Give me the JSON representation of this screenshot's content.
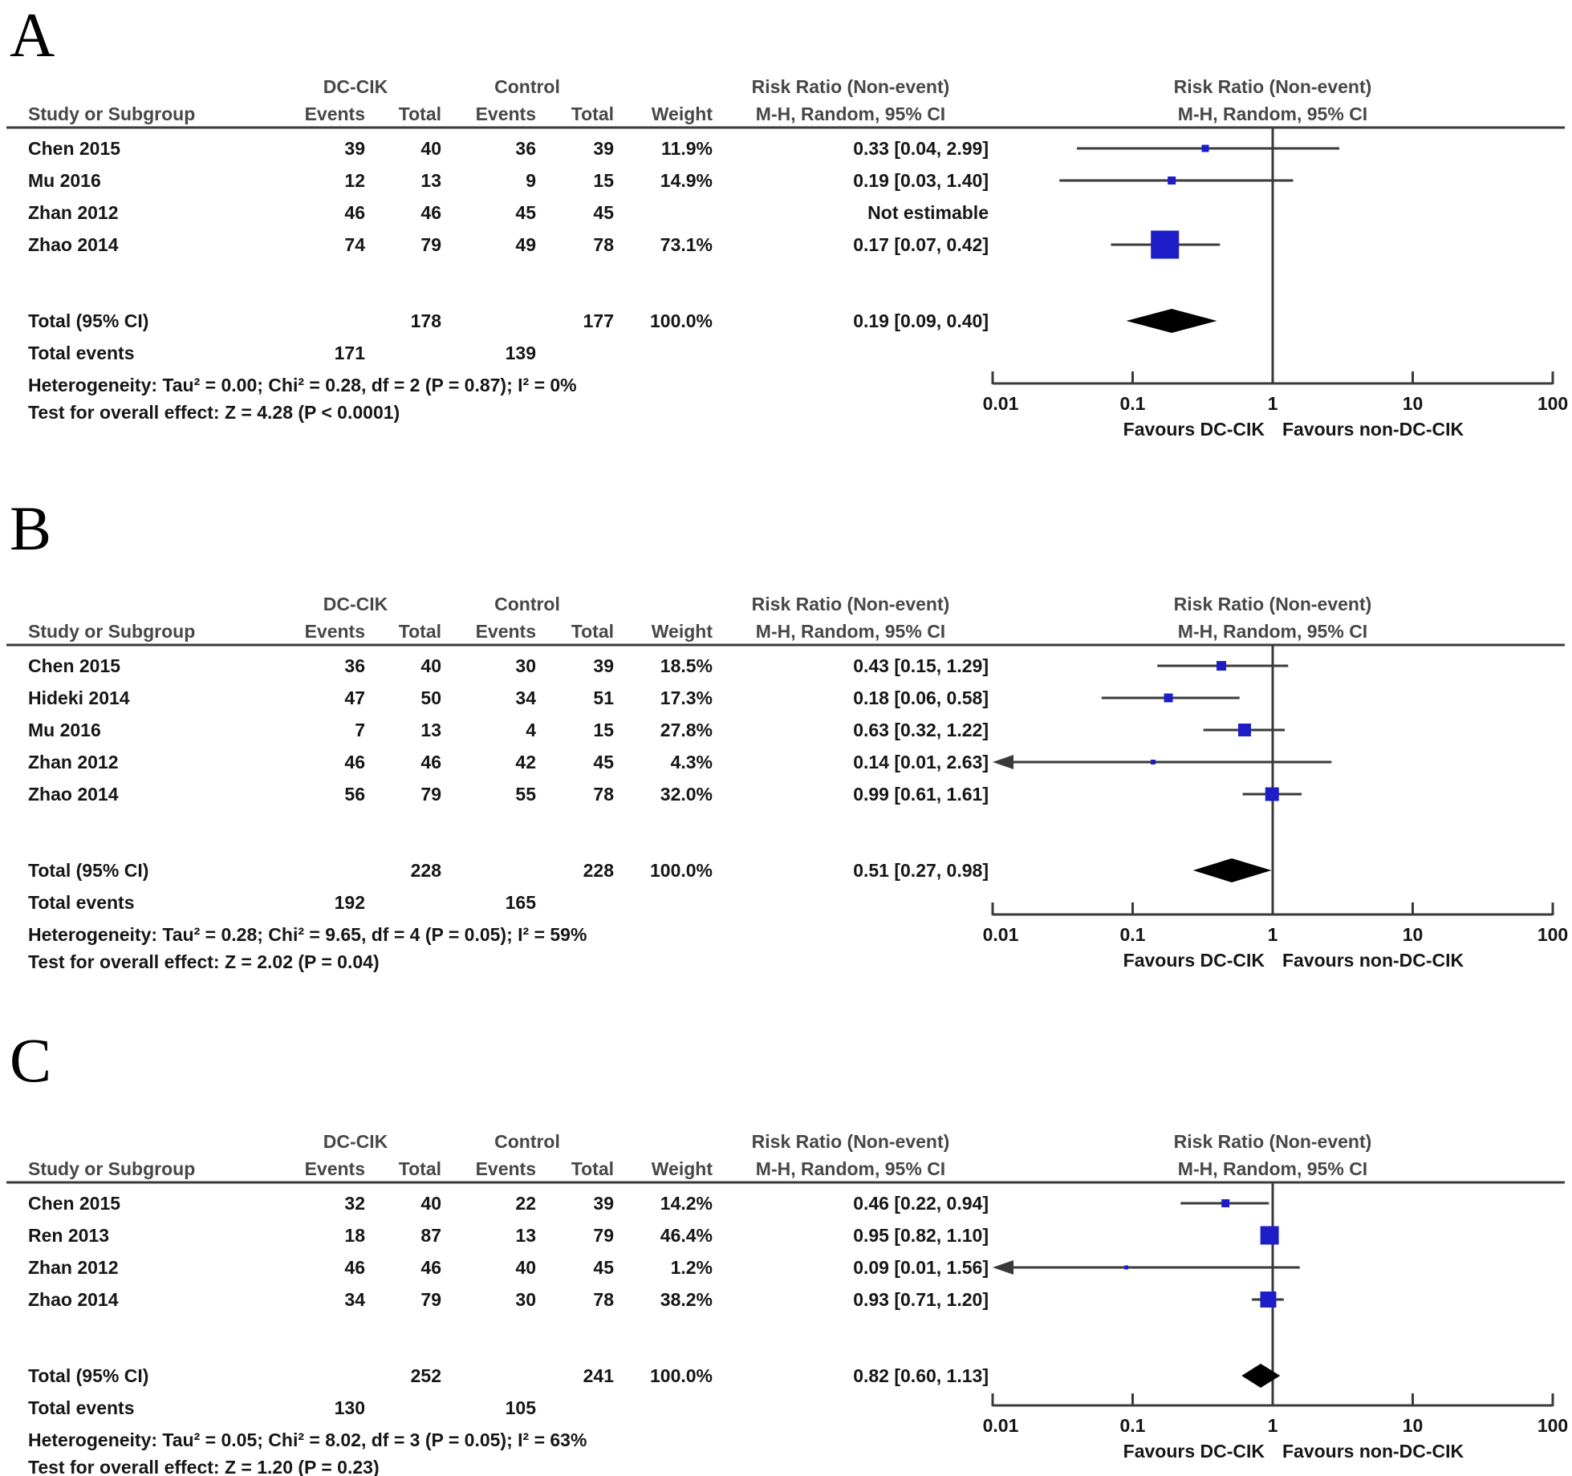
{
  "shared": {
    "study_col": "Study or Subgroup",
    "group1": "DC-CIK",
    "group2": "Control",
    "events_col": "Events",
    "total_col": "Total",
    "weight_col": "Weight",
    "rr_title": "Risk Ratio (Non-event)",
    "rr_subtitle": "M-H, Random, 95% CI",
    "axis_tick_labels": [
      "0.01",
      "0.1",
      "1",
      "10",
      "100"
    ],
    "axis_tick_values": [
      0.01,
      0.1,
      1,
      10,
      100
    ],
    "favours_left": "Favours DC-CIK",
    "favours_right": "Favours non-DC-CIK",
    "not_estimable": "Not estimable",
    "square_color": "#1e1ec8",
    "diamond_color": "#000000",
    "line_color": "#3a3a3a"
  },
  "chart_data": [
    {
      "type": "forest",
      "panel": "A",
      "x_scale": "log",
      "x_range": [
        0.01,
        100
      ],
      "studies": [
        {
          "name": "Chen 2015",
          "exp_events": 39,
          "exp_total": 40,
          "ctl_events": 36,
          "ctl_total": 39,
          "weight": "11.9%",
          "weight_val": 11.9,
          "rr_label": "0.33 [0.04, 2.99]",
          "rr": 0.33,
          "ci_low": 0.04,
          "ci_high": 2.99
        },
        {
          "name": "Mu 2016",
          "exp_events": 12,
          "exp_total": 13,
          "ctl_events": 9,
          "ctl_total": 15,
          "weight": "14.9%",
          "weight_val": 14.9,
          "rr_label": "0.19 [0.03, 1.40]",
          "rr": 0.19,
          "ci_low": 0.03,
          "ci_high": 1.4
        },
        {
          "name": "Zhan 2012",
          "exp_events": 46,
          "exp_total": 46,
          "ctl_events": 45,
          "ctl_total": 45,
          "weight": "",
          "weight_val": 0,
          "rr_label": "Not estimable",
          "rr": null,
          "ci_low": null,
          "ci_high": null
        },
        {
          "name": "Zhao 2014",
          "exp_events": 74,
          "exp_total": 79,
          "ctl_events": 49,
          "ctl_total": 78,
          "weight": "73.1%",
          "weight_val": 73.1,
          "rr_label": "0.17 [0.07, 0.42]",
          "rr": 0.17,
          "ci_low": 0.07,
          "ci_high": 0.42
        }
      ],
      "total": {
        "label": "Total (95% CI)",
        "exp_total": 178,
        "ctl_total": 177,
        "weight": "100.0%",
        "rr_label": "0.19 [0.09, 0.40]",
        "rr": 0.19,
        "ci_low": 0.09,
        "ci_high": 0.4
      },
      "total_events": {
        "label": "Total events",
        "exp": 171,
        "ctl": 139
      },
      "heterogeneity": "Heterogeneity: Tau² = 0.00; Chi² = 0.28, df = 2 (P = 0.87); I² = 0%",
      "overall_effect": "Test for overall effect: Z = 4.28 (P < 0.0001)"
    },
    {
      "type": "forest",
      "panel": "B",
      "x_scale": "log",
      "x_range": [
        0.01,
        100
      ],
      "studies": [
        {
          "name": "Chen 2015",
          "exp_events": 36,
          "exp_total": 40,
          "ctl_events": 30,
          "ctl_total": 39,
          "weight": "18.5%",
          "weight_val": 18.5,
          "rr_label": "0.43 [0.15, 1.29]",
          "rr": 0.43,
          "ci_low": 0.15,
          "ci_high": 1.29
        },
        {
          "name": "Hideki 2014",
          "exp_events": 47,
          "exp_total": 50,
          "ctl_events": 34,
          "ctl_total": 51,
          "weight": "17.3%",
          "weight_val": 17.3,
          "rr_label": "0.18 [0.06, 0.58]",
          "rr": 0.18,
          "ci_low": 0.06,
          "ci_high": 0.58
        },
        {
          "name": "Mu 2016",
          "exp_events": 7,
          "exp_total": 13,
          "ctl_events": 4,
          "ctl_total": 15,
          "weight": "27.8%",
          "weight_val": 27.8,
          "rr_label": "0.63 [0.32, 1.22]",
          "rr": 0.63,
          "ci_low": 0.32,
          "ci_high": 1.22
        },
        {
          "name": "Zhan 2012",
          "exp_events": 46,
          "exp_total": 46,
          "ctl_events": 42,
          "ctl_total": 45,
          "weight": "4.3%",
          "weight_val": 4.3,
          "rr_label": "0.14 [0.01, 2.63]",
          "rr": 0.14,
          "ci_low": 0.01,
          "ci_high": 2.63
        },
        {
          "name": "Zhao 2014",
          "exp_events": 56,
          "exp_total": 79,
          "ctl_events": 55,
          "ctl_total": 78,
          "weight": "32.0%",
          "weight_val": 32.0,
          "rr_label": "0.99 [0.61, 1.61]",
          "rr": 0.99,
          "ci_low": 0.61,
          "ci_high": 1.61
        }
      ],
      "total": {
        "label": "Total (95% CI)",
        "exp_total": 228,
        "ctl_total": 228,
        "weight": "100.0%",
        "rr_label": "0.51 [0.27, 0.98]",
        "rr": 0.51,
        "ci_low": 0.27,
        "ci_high": 0.98
      },
      "total_events": {
        "label": "Total events",
        "exp": 192,
        "ctl": 165
      },
      "heterogeneity": "Heterogeneity: Tau² = 0.28; Chi² = 9.65, df = 4 (P = 0.05); I² = 59%",
      "overall_effect": "Test for overall effect: Z = 2.02 (P = 0.04)"
    },
    {
      "type": "forest",
      "panel": "C",
      "x_scale": "log",
      "x_range": [
        0.01,
        100
      ],
      "studies": [
        {
          "name": "Chen 2015",
          "exp_events": 32,
          "exp_total": 40,
          "ctl_events": 22,
          "ctl_total": 39,
          "weight": "14.2%",
          "weight_val": 14.2,
          "rr_label": "0.46 [0.22, 0.94]",
          "rr": 0.46,
          "ci_low": 0.22,
          "ci_high": 0.94
        },
        {
          "name": "Ren 2013",
          "exp_events": 18,
          "exp_total": 87,
          "ctl_events": 13,
          "ctl_total": 79,
          "weight": "46.4%",
          "weight_val": 46.4,
          "rr_label": "0.95 [0.82, 1.10]",
          "rr": 0.95,
          "ci_low": 0.82,
          "ci_high": 1.1
        },
        {
          "name": "Zhan 2012",
          "exp_events": 46,
          "exp_total": 46,
          "ctl_events": 40,
          "ctl_total": 45,
          "weight": "1.2%",
          "weight_val": 1.2,
          "rr_label": "0.09 [0.01, 1.56]",
          "rr": 0.09,
          "ci_low": 0.01,
          "ci_high": 1.56
        },
        {
          "name": "Zhao 2014",
          "exp_events": 34,
          "exp_total": 79,
          "ctl_events": 30,
          "ctl_total": 78,
          "weight": "38.2%",
          "weight_val": 38.2,
          "rr_label": "0.93 [0.71, 1.20]",
          "rr": 0.93,
          "ci_low": 0.71,
          "ci_high": 1.2
        }
      ],
      "total": {
        "label": "Total (95% CI)",
        "exp_total": 252,
        "ctl_total": 241,
        "weight": "100.0%",
        "rr_label": "0.82 [0.60, 1.13]",
        "rr": 0.82,
        "ci_low": 0.6,
        "ci_high": 1.13
      },
      "total_events": {
        "label": "Total events",
        "exp": 130,
        "ctl": 105
      },
      "heterogeneity": "Heterogeneity: Tau² = 0.05; Chi² = 8.02, df = 3 (P = 0.05); I² = 63%",
      "overall_effect": "Test for overall effect: Z = 1.20 (P = 0.23)"
    }
  ]
}
